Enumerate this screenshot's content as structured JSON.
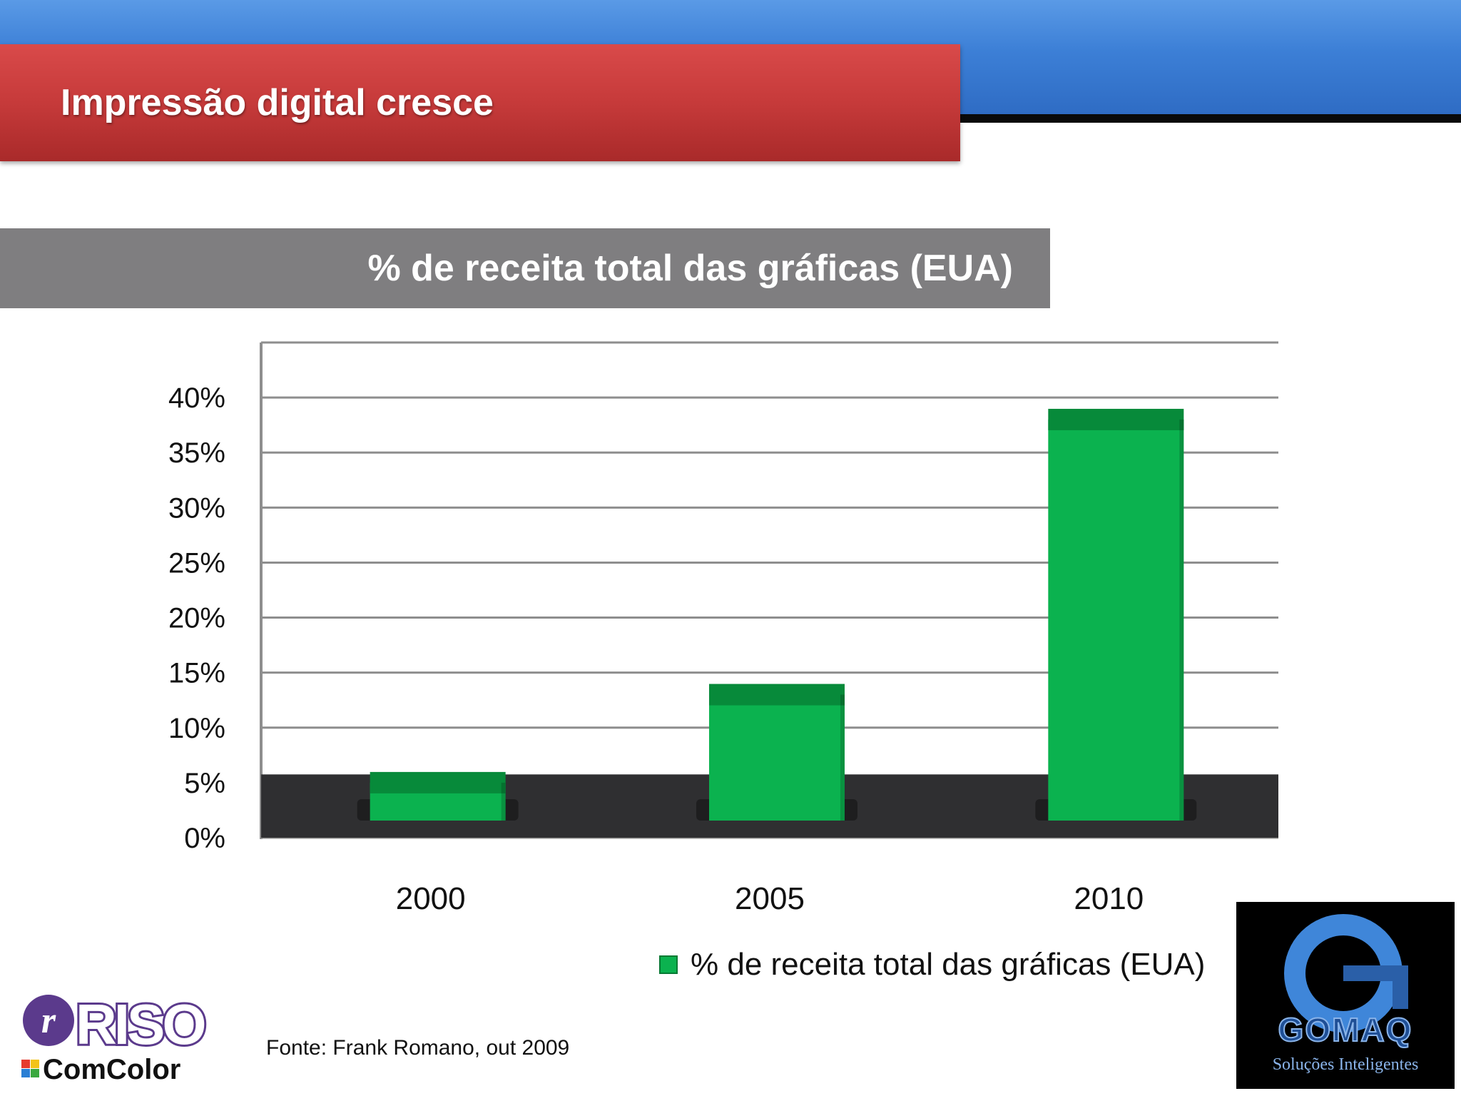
{
  "header": {
    "title": "Impressão digital cresce"
  },
  "chart_header": {
    "subtitle": "% de receita total das gráficas (EUA)"
  },
  "chart_data": {
    "type": "bar",
    "categories": [
      "2000",
      "2005",
      "2010"
    ],
    "series": [
      {
        "name": "% de receita total das gráficas (EUA)",
        "values": [
          5,
          13,
          38
        ]
      }
    ],
    "ylim": [
      0,
      45
    ],
    "yticks": [
      0,
      5,
      10,
      15,
      20,
      25,
      30,
      35,
      40
    ],
    "ytick_labels": [
      "0%",
      "5%",
      "10%",
      "15%",
      "20%",
      "25%",
      "30%",
      "35%",
      "40%"
    ],
    "grid": true,
    "legend_position": "bottom-right",
    "bar_color": "#0bb24f",
    "bar_top_color": "#078a3a",
    "floor_color": "#2f2f31"
  },
  "legend": {
    "label": "% de receita total das gráficas (EUA)"
  },
  "footer": {
    "source": "Fonte: Frank Romano, out 2009"
  },
  "logos": {
    "riso": {
      "name": "RISO",
      "product": "ComColor"
    },
    "gomaq": {
      "name": "GOMAQ",
      "tagline": "Soluções Inteligentes"
    }
  }
}
